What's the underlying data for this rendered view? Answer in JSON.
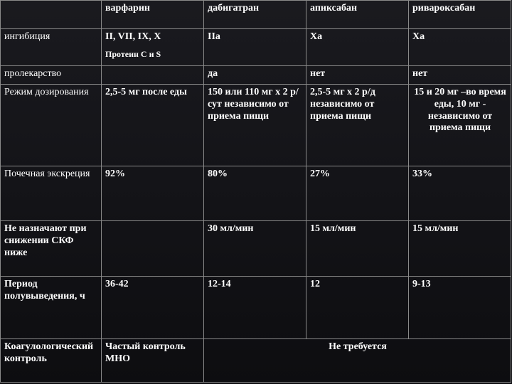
{
  "table": {
    "header": [
      "",
      "варфарин",
      "дабигатран",
      "апиксабан",
      "ривароксабан"
    ],
    "rows": {
      "inhibition": {
        "label": "ингибиция",
        "warfarin_main": "II, VII, IX, X",
        "warfarin_note": "Протеин С и S",
        "dabigatran": "IIa",
        "apixaban": "Xa",
        "rivaroxaban": "Xa"
      },
      "prodrug": {
        "label": "пролекарство",
        "warfarin": "",
        "dabigatran": "да",
        "apixaban": "нет",
        "rivaroxaban": "нет"
      },
      "dosing": {
        "label": "Режим дозирования",
        "warfarin": "2,5-5 мг после еды",
        "dabigatran": "150 или 110 мг х 2 р/сут независимо от приема пищи",
        "apixaban": "2,5-5 мг х 2 р/д независимо от приема пищи",
        "rivaroxaban": "15 и 20 мг –во время еды, 10 мг - независимо от приема пищи"
      },
      "renal": {
        "label": "Почечная экскреция",
        "warfarin": "92%",
        "dabigatran": "80%",
        "apixaban": "27%",
        "rivaroxaban": "33%"
      },
      "crcl": {
        "label": "Не назначают при снижении СКФ ниже",
        "warfarin": "",
        "dabigatran": "30 мл/мин",
        "apixaban": "15 мл/мин",
        "rivaroxaban": "15 мл/мин"
      },
      "halflife": {
        "label": "Период полувыведения, ч",
        "warfarin": "36-42",
        "dabigatran": "12-14",
        "apixaban": "12",
        "rivaroxaban": "9-13"
      },
      "coag": {
        "label": "Коагулологический контроль",
        "warfarin": "Частый контроль МНО",
        "others": "Не требуется"
      }
    }
  }
}
